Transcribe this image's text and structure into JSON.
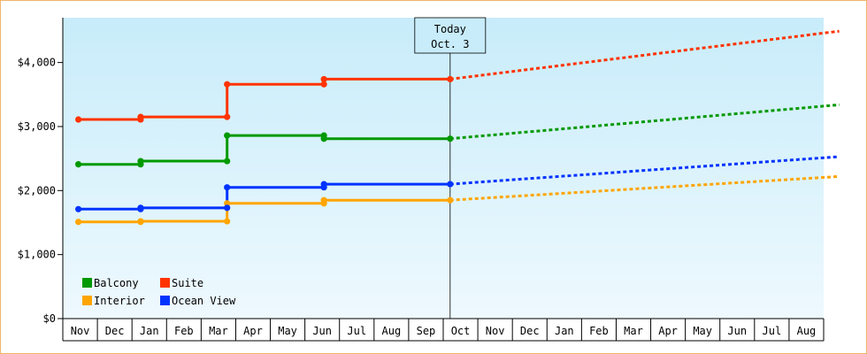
{
  "chart_data": {
    "type": "line",
    "title": "",
    "xlabel": "",
    "ylabel": "",
    "months": [
      "Nov",
      "Dec",
      "Jan",
      "Feb",
      "Mar",
      "Apr",
      "May",
      "Jun",
      "Jul",
      "Aug",
      "Sep",
      "Oct",
      "Nov",
      "Dec",
      "Jan",
      "Feb",
      "Mar",
      "Apr",
      "May",
      "Jun",
      "Jul",
      "Aug"
    ],
    "y_ticks": [
      "$0",
      "$1,000",
      "$2,000",
      "$3,000",
      "$4,000"
    ],
    "ylim": [
      0,
      4700
    ],
    "grid": false,
    "background": "gradient light-blue",
    "legend": {
      "placement": "bottom-left",
      "entries": [
        {
          "label": "Balcony",
          "color": "#009900"
        },
        {
          "label": "Suite",
          "color": "#ff3300"
        },
        {
          "label": "Interior",
          "color": "#ffa500"
        },
        {
          "label": "Ocean View",
          "color": "#0033ff"
        }
      ]
    },
    "today_marker": {
      "line1": "Today",
      "line2": "Oct. 3",
      "x": 10.7
    },
    "series": [
      {
        "name": "Balcony",
        "color": "#009900",
        "history": [
          [
            -0.05,
            2410
          ],
          [
            1.75,
            2410
          ],
          [
            1.75,
            2460
          ],
          [
            4.25,
            2460
          ],
          [
            4.25,
            2860
          ],
          [
            7.05,
            2860
          ],
          [
            7.05,
            2810
          ],
          [
            10.7,
            2810
          ]
        ],
        "points": [
          [
            -0.05,
            2410
          ],
          [
            1.75,
            2410
          ],
          [
            1.75,
            2460
          ],
          [
            4.25,
            2460
          ],
          [
            4.25,
            2860
          ],
          [
            7.05,
            2860
          ],
          [
            7.05,
            2810
          ],
          [
            10.7,
            2810
          ]
        ],
        "forecast": [
          [
            10.7,
            2810
          ],
          [
            21.95,
            3340
          ]
        ]
      },
      {
        "name": "Suite",
        "color": "#ff3300",
        "history": [
          [
            -0.05,
            3110
          ],
          [
            1.75,
            3110
          ],
          [
            1.75,
            3150
          ],
          [
            4.25,
            3150
          ],
          [
            4.25,
            3660
          ],
          [
            7.05,
            3660
          ],
          [
            7.05,
            3740
          ],
          [
            10.7,
            3740
          ]
        ],
        "points": [
          [
            -0.05,
            3110
          ],
          [
            1.75,
            3110
          ],
          [
            1.75,
            3150
          ],
          [
            4.25,
            3150
          ],
          [
            4.25,
            3660
          ],
          [
            7.05,
            3660
          ],
          [
            7.05,
            3740
          ],
          [
            10.7,
            3740
          ]
        ],
        "forecast": [
          [
            10.7,
            3740
          ],
          [
            21.95,
            4490
          ]
        ]
      },
      {
        "name": "Interior",
        "color": "#ffa500",
        "history": [
          [
            -0.05,
            1510
          ],
          [
            1.75,
            1510
          ],
          [
            1.75,
            1520
          ],
          [
            4.25,
            1520
          ],
          [
            4.25,
            1800
          ],
          [
            7.05,
            1800
          ],
          [
            7.05,
            1850
          ],
          [
            10.7,
            1850
          ]
        ],
        "points": [
          [
            -0.05,
            1510
          ],
          [
            1.75,
            1510
          ],
          [
            1.75,
            1520
          ],
          [
            4.25,
            1520
          ],
          [
            4.25,
            1800
          ],
          [
            7.05,
            1800
          ],
          [
            7.05,
            1850
          ],
          [
            10.7,
            1850
          ]
        ],
        "forecast": [
          [
            10.7,
            1850
          ],
          [
            21.95,
            2220
          ]
        ]
      },
      {
        "name": "Ocean View",
        "color": "#0033ff",
        "history": [
          [
            -0.05,
            1710
          ],
          [
            1.75,
            1710
          ],
          [
            1.75,
            1730
          ],
          [
            4.25,
            1730
          ],
          [
            4.25,
            2050
          ],
          [
            7.05,
            2050
          ],
          [
            7.05,
            2100
          ],
          [
            10.7,
            2100
          ]
        ],
        "points": [
          [
            -0.05,
            1710
          ],
          [
            1.75,
            1710
          ],
          [
            1.75,
            1730
          ],
          [
            4.25,
            1730
          ],
          [
            4.25,
            2050
          ],
          [
            7.05,
            2050
          ],
          [
            7.05,
            2100
          ],
          [
            10.7,
            2100
          ]
        ],
        "forecast": [
          [
            10.7,
            2100
          ],
          [
            21.95,
            2530
          ]
        ]
      }
    ]
  }
}
